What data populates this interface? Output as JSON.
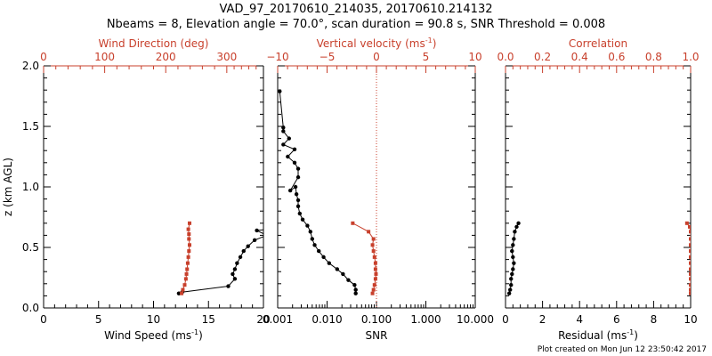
{
  "header": {
    "title": "VAD_97_20170610_214035, 20170610.214132",
    "subtitle": "Nbeams = 8, Elevation angle = 70.0°, scan duration = 90.8 s, SNR Threshold = 0.008"
  },
  "footer": {
    "text": "Plot created on Mon Jun 12 23:50:42 2017"
  },
  "colors": {
    "primary": "#000000",
    "secondary": "#c8402c"
  },
  "chart_data": [
    {
      "type": "line",
      "ylabel": "z (km AGL)",
      "ylim": [
        0.0,
        2.0
      ],
      "yticks": [
        0.0,
        0.5,
        1.0,
        1.5,
        2.0
      ],
      "ytick_labels": [
        "0.0",
        "0.5",
        "1.0",
        "1.5",
        "2.0"
      ],
      "bottom_axis": {
        "label": "Wind Speed (ms",
        "label_sup": "-1",
        "label_close": ")",
        "range": [
          0,
          20
        ],
        "ticks": [
          0,
          5,
          10,
          15,
          20
        ],
        "tick_labels": [
          "0",
          "5",
          "10",
          "15",
          "20"
        ]
      },
      "top_axis": {
        "label": "Wind Direction (deg)",
        "range": [
          0,
          360
        ],
        "ticks": [
          0,
          100,
          200,
          300
        ],
        "tick_labels": [
          "0",
          "100",
          "200",
          "300"
        ]
      },
      "series": [
        {
          "axis": "bottom",
          "color": "#000000",
          "marker": "circle",
          "points": [
            [
              12.3,
              0.12
            ],
            [
              12.6,
              0.13
            ],
            [
              16.8,
              0.18
            ],
            [
              17.4,
              0.24
            ],
            [
              17.2,
              0.28
            ],
            [
              17.4,
              0.32
            ],
            [
              17.6,
              0.37
            ],
            [
              17.9,
              0.42
            ],
            [
              18.2,
              0.47
            ],
            [
              18.6,
              0.51
            ],
            [
              19.2,
              0.56
            ],
            [
              20.3,
              0.6
            ],
            [
              19.4,
              0.64
            ],
            [
              20.3,
              0.65
            ]
          ]
        },
        {
          "axis": "top",
          "color": "#c8402c",
          "marker": "square",
          "points": [
            [
              226,
              0.12
            ],
            [
              228,
              0.15
            ],
            [
              231,
              0.19
            ],
            [
              233,
              0.24
            ],
            [
              234,
              0.28
            ],
            [
              235,
              0.32
            ],
            [
              236,
              0.37
            ],
            [
              237,
              0.42
            ],
            [
              238,
              0.47
            ],
            [
              239,
              0.52
            ],
            [
              238,
              0.57
            ],
            [
              238,
              0.61
            ],
            [
              237,
              0.65
            ],
            [
              239,
              0.7
            ]
          ]
        }
      ]
    },
    {
      "type": "line",
      "ylim": [
        0.0,
        2.0
      ],
      "bottom_axis": {
        "label": "SNR",
        "scale": "log",
        "range": [
          0.001,
          10.0
        ],
        "ticks": [
          0.001,
          0.01,
          0.1,
          1.0,
          10.0
        ],
        "tick_labels": [
          "0.001",
          "0.010",
          "0.100",
          "1.000",
          "10.000"
        ]
      },
      "top_axis": {
        "label": "Vertical velocity (ms",
        "label_sup": "-1",
        "label_close": ")",
        "range": [
          -10,
          10
        ],
        "ticks": [
          -10,
          -5,
          0,
          5,
          10
        ],
        "tick_labels": [
          "−10",
          "−5",
          "0",
          "5",
          "10"
        ]
      },
      "reference_line": {
        "axis": "top",
        "value": 0,
        "style": "dotted",
        "color": "#c8402c"
      },
      "series": [
        {
          "axis": "bottom",
          "color": "#000000",
          "marker": "circle",
          "points": [
            [
              0.038,
              0.12
            ],
            [
              0.038,
              0.15
            ],
            [
              0.036,
              0.19
            ],
            [
              0.027,
              0.23
            ],
            [
              0.021,
              0.28
            ],
            [
              0.016,
              0.32
            ],
            [
              0.011,
              0.37
            ],
            [
              0.0085,
              0.42
            ],
            [
              0.0068,
              0.47
            ],
            [
              0.0056,
              0.52
            ],
            [
              0.005,
              0.57
            ],
            [
              0.0046,
              0.63
            ],
            [
              0.004,
              0.68
            ],
            [
              0.0032,
              0.73
            ],
            [
              0.0028,
              0.78
            ],
            [
              0.0026,
              0.84
            ],
            [
              0.0026,
              0.89
            ],
            [
              0.0024,
              0.94
            ],
            [
              0.0023,
              1.0
            ],
            [
              0.0018,
              0.97
            ],
            [
              0.0026,
              1.08
            ],
            [
              0.0026,
              1.15
            ],
            [
              0.0022,
              1.2
            ],
            [
              0.0016,
              1.25
            ],
            [
              0.0022,
              1.31
            ],
            [
              0.0013,
              1.35
            ],
            [
              0.0017,
              1.4
            ],
            [
              0.0013,
              1.46
            ],
            [
              0.0013,
              1.49
            ],
            [
              0.0011,
              1.79
            ]
          ]
        },
        {
          "axis": "top",
          "color": "#c8402c",
          "marker": "square",
          "points": [
            [
              -0.4,
              0.12
            ],
            [
              -0.3,
              0.15
            ],
            [
              -0.2,
              0.19
            ],
            [
              -0.1,
              0.24
            ],
            [
              -0.05,
              0.28
            ],
            [
              -0.1,
              0.32
            ],
            [
              -0.1,
              0.37
            ],
            [
              -0.2,
              0.42
            ],
            [
              -0.3,
              0.47
            ],
            [
              -0.4,
              0.52
            ],
            [
              -0.3,
              0.57
            ],
            [
              -0.8,
              0.63
            ],
            [
              -2.4,
              0.7
            ]
          ]
        }
      ]
    },
    {
      "type": "line",
      "ylim": [
        0.0,
        2.0
      ],
      "bottom_axis": {
        "label": "Residual (ms",
        "label_sup": "-1",
        "label_close": ")",
        "range": [
          0,
          10
        ],
        "ticks": [
          0,
          2,
          4,
          6,
          8,
          10
        ],
        "tick_labels": [
          "0",
          "2",
          "4",
          "6",
          "8",
          "10"
        ]
      },
      "top_axis": {
        "label": "Correlation",
        "range": [
          0.0,
          1.0
        ],
        "ticks": [
          0.0,
          0.2,
          0.4,
          0.6,
          0.8,
          1.0
        ],
        "tick_labels": [
          "0.0",
          "0.2",
          "0.4",
          "0.6",
          "0.8",
          "1.0"
        ]
      },
      "series": [
        {
          "axis": "bottom",
          "color": "#000000",
          "marker": "circle",
          "points": [
            [
              0.2,
              0.12
            ],
            [
              0.25,
              0.15
            ],
            [
              0.3,
              0.19
            ],
            [
              0.3,
              0.24
            ],
            [
              0.35,
              0.28
            ],
            [
              0.4,
              0.32
            ],
            [
              0.45,
              0.37
            ],
            [
              0.4,
              0.42
            ],
            [
              0.35,
              0.47
            ],
            [
              0.4,
              0.52
            ],
            [
              0.45,
              0.57
            ],
            [
              0.5,
              0.63
            ],
            [
              0.6,
              0.67
            ],
            [
              0.7,
              0.7
            ]
          ]
        },
        {
          "axis": "top",
          "color": "#c8402c",
          "marker": "square",
          "points": [
            [
              1.0,
              0.12
            ],
            [
              1.0,
              0.15
            ],
            [
              1.0,
              0.19
            ],
            [
              1.0,
              0.24
            ],
            [
              1.0,
              0.28
            ],
            [
              1.0,
              0.32
            ],
            [
              1.0,
              0.37
            ],
            [
              1.0,
              0.42
            ],
            [
              1.0,
              0.47
            ],
            [
              1.0,
              0.52
            ],
            [
              1.0,
              0.57
            ],
            [
              1.0,
              0.63
            ],
            [
              0.995,
              0.67
            ],
            [
              0.98,
              0.7
            ]
          ]
        }
      ]
    }
  ]
}
